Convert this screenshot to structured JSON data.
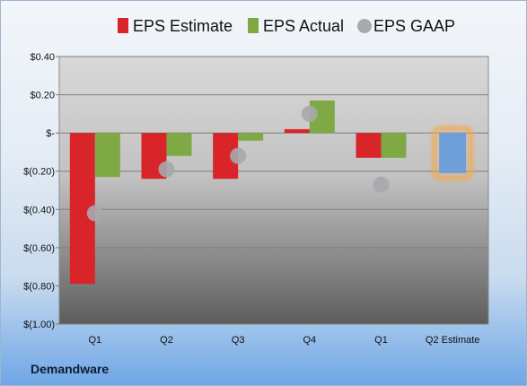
{
  "chart_data": {
    "type": "bar",
    "company": "Demandware",
    "categories": [
      "Q1",
      "Q2",
      "Q3",
      "Q4",
      "Q1",
      "Q2 Estimate"
    ],
    "legend_position": "top",
    "grid": true,
    "ylim": [
      -1.0,
      0.4
    ],
    "yticks": [
      {
        "value": 0.4,
        "label": "$0.40"
      },
      {
        "value": 0.2,
        "label": "$0.20"
      },
      {
        "value": 0.0,
        "label": "$-"
      },
      {
        "value": -0.2,
        "label": "$(0.20)"
      },
      {
        "value": -0.4,
        "label": "$(0.40)"
      },
      {
        "value": -0.6,
        "label": "$(0.60)"
      },
      {
        "value": -0.8,
        "label": "$(0.80)"
      },
      {
        "value": -1.0,
        "label": "$(1.00)"
      }
    ],
    "series": [
      {
        "name": "EPS Estimate",
        "kind": "bar",
        "color": "#d9252a",
        "values": [
          -0.79,
          -0.24,
          -0.24,
          0.02,
          -0.13,
          null
        ]
      },
      {
        "name": "EPS Actual",
        "kind": "bar",
        "color": "#7fa945",
        "values": [
          -0.23,
          -0.12,
          -0.04,
          0.17,
          -0.13,
          null
        ]
      },
      {
        "name": "EPS GAAP",
        "kind": "marker",
        "color": "#a7a9ac",
        "values": [
          -0.42,
          -0.19,
          -0.12,
          0.1,
          -0.27,
          null
        ]
      }
    ],
    "forward_estimate": {
      "category": "Q2 Estimate",
      "value": -0.21,
      "color": "#6f9fd8",
      "glow": "#f4a74a"
    }
  }
}
